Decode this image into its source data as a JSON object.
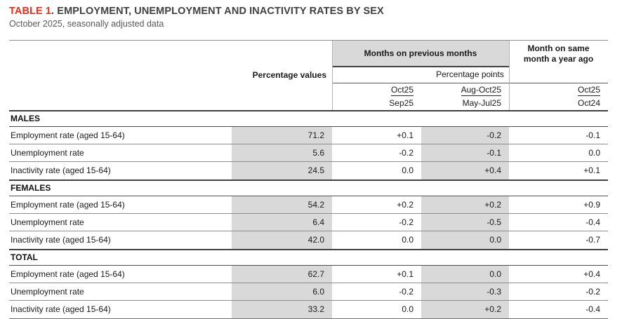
{
  "title": {
    "label": "TABLE 1",
    "rest": ". EMPLOYMENT, UNEMPLOYMENT AND INACTIVITY RATES BY SEX"
  },
  "subtitle": "October 2025, seasonally adjusted data",
  "colors": {
    "accent_red": "#e0301e",
    "shading_gray": "#d9d9d9",
    "dark_rule": "#404040",
    "light_rule": "#8c8c8c"
  },
  "header": {
    "months_prev_label": "Months on previous months",
    "month_year_ago_label": "Month on same month a year ago",
    "percentage_values_label": "Percentage values",
    "percentage_points_label": "Percentage points",
    "period_cols": [
      {
        "num": "Oct25",
        "den": "Sep25"
      },
      {
        "num": "Aug-Oct25",
        "den": "May-Jul25"
      },
      {
        "num": "Oct25",
        "den": "Oct24"
      }
    ]
  },
  "sections": [
    {
      "label": "MALES",
      "rows": [
        {
          "label": "Employment rate (aged 15-64)",
          "values": [
            "71.2",
            "+0.1",
            "-0.2",
            "-0.1"
          ]
        },
        {
          "label": "Unemployment rate",
          "values": [
            "5.6",
            "-0.2",
            "-0.1",
            "0.0"
          ]
        },
        {
          "label": "Inactivity rate (aged 15-64)",
          "values": [
            "24.5",
            "0.0",
            "+0.4",
            "+0.1"
          ]
        }
      ]
    },
    {
      "label": "FEMALES",
      "rows": [
        {
          "label": "Employment rate (aged 15-64)",
          "values": [
            "54.2",
            "+0.2",
            "+0.2",
            "+0.9"
          ]
        },
        {
          "label": "Unemployment rate",
          "values": [
            "6.4",
            "-0.2",
            "-0.5",
            "-0.4"
          ]
        },
        {
          "label": "Inactivity rate (aged 15-64)",
          "values": [
            "42.0",
            "0.0",
            "0.0",
            "-0.7"
          ]
        }
      ]
    },
    {
      "label": "TOTAL",
      "rows": [
        {
          "label": "Employment rate (aged 15-64)",
          "values": [
            "62.7",
            "+0.1",
            "0.0",
            "+0.4"
          ]
        },
        {
          "label": "Unemployment rate",
          "values": [
            "6.0",
            "-0.2",
            "-0.3",
            "-0.2"
          ]
        },
        {
          "label": "Inactivity rate (aged 15-64)",
          "values": [
            "33.2",
            "0.0",
            "+0.2",
            "-0.4"
          ]
        }
      ]
    }
  ]
}
